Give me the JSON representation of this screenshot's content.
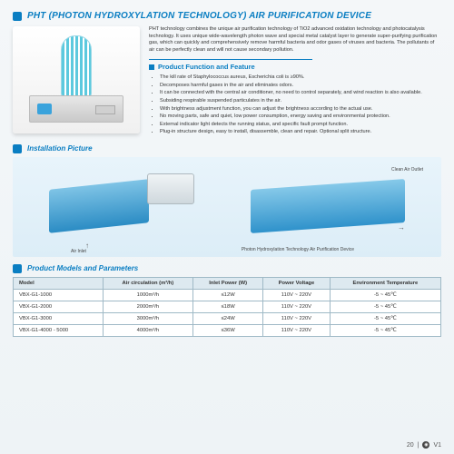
{
  "title": "PHT (PHOTON HYDROXYLATION TECHNOLOGY) AIR PURIFICATION DEVICE",
  "intro": "PHT technology combines the unique air purification technology of TiO2 advanced oxidation technology and photocatalysis technology. It uses unique wide-wavelength photon wave and special metal catalyst layer to generate super-purifying purification gas, which can quickly and comprehensively remove harmful bacteria and odor gases of viruses and bacteria. The pollutants of air can be perfectly clean and will not cause secondary pollution.",
  "features_title": "Product Function and Feature",
  "features": [
    "The kill rate of Staphylococcus aureus, Escherichia coli is ≥90%.",
    "Decomposes harmful gases in the air and eliminates odors.",
    "It can be connected with the central air conditioner, no need to control separately, and wind reaction is also available.",
    "Subsiding respirable suspended particulates in the air.",
    "With brightness adjustment function, you can adjust the brightness according to the actual use.",
    "No moving parts, safe and quiet, low power consumption, energy saving and environmental protection.",
    "External indicator light detects the running status, and specific fault prompt function.",
    "Plug-in structure design, easy to install, disassemble, clean and repair. Optional split structure."
  ],
  "install_title": "Installation Picture",
  "install_labels": {
    "inlet": "Air Inlet",
    "outlet": "Clean Air Outlet",
    "device": "Photon Hydroxylation Technology\nAir Purification Device"
  },
  "params_title": "Product Models and Parameters",
  "table": {
    "columns": [
      "Model",
      "Air circulation (m³/h)",
      "Inlet Power (W)",
      "Power Voltage",
      "Environment Temperature"
    ],
    "rows": [
      [
        "VBX-G1-1000",
        "1000m³/h",
        "≤12W",
        "110V ~ 220V",
        "-5 ~ 45℃"
      ],
      [
        "VBX-G1-2000",
        "2000m³/h",
        "≤18W",
        "110V ~ 220V",
        "-5 ~ 45℃"
      ],
      [
        "VBX-G1-3000",
        "3000m³/h",
        "≤24W",
        "110V ~ 220V",
        "-5 ~ 45℃"
      ],
      [
        "VBX-G1-4000 - 5000",
        "4000m³/h",
        "≤36W",
        "110V ~ 220V",
        "-5 ~ 45℃"
      ]
    ]
  },
  "footer": {
    "page": "20",
    "brand": "V1"
  },
  "colors": {
    "accent": "#0a7ec2",
    "table_border": "#9fb9c6",
    "table_header_bg": "#dde9f0"
  }
}
